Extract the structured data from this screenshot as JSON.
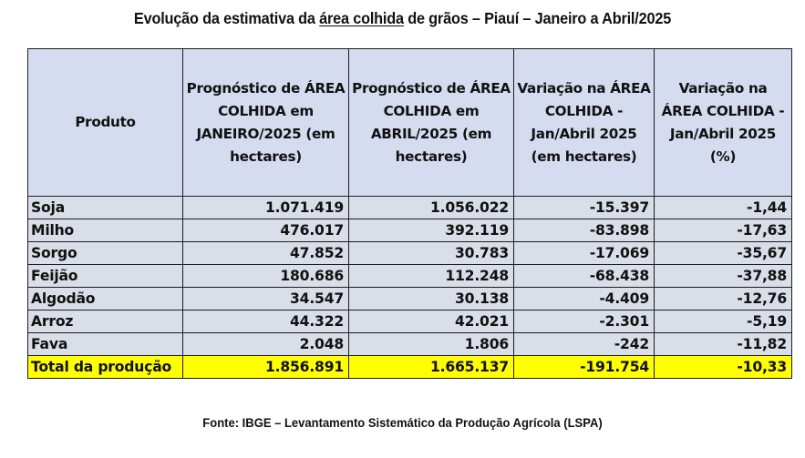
{
  "title": {
    "before": "Evolução da estimativa da ",
    "underlined": "área colhida",
    "after": " de grãos – Piauí – Janeiro a Abril/2025"
  },
  "table": {
    "headers": [
      "Produto",
      "Prognóstico de ÁREA COLHIDA em JANEIRO/2025 (em hectares)",
      "Prognóstico de ÁREA COLHIDA em ABRIL/2025 (em hectares)",
      "Variação na ÁREA COLHIDA - Jan/Abril 2025 (em hectares)",
      "Variação na ÁREA COLHIDA - Jan/Abril 2025 (%)"
    ],
    "rows": [
      {
        "produto": "Soja",
        "jan": "1.071.419",
        "abr": "1.056.022",
        "var_ha": "-15.397",
        "var_pct": "-1,44"
      },
      {
        "produto": "Milho",
        "jan": "476.017",
        "abr": "392.119",
        "var_ha": "-83.898",
        "var_pct": "-17,63"
      },
      {
        "produto": "Sorgo",
        "jan": "47.852",
        "abr": "30.783",
        "var_ha": "-17.069",
        "var_pct": "-35,67"
      },
      {
        "produto": "Feijão",
        "jan": "180.686",
        "abr": "112.248",
        "var_ha": "-68.438",
        "var_pct": "-37,88"
      },
      {
        "produto": "Algodão",
        "jan": "34.547",
        "abr": "30.138",
        "var_ha": "-4.409",
        "var_pct": "-12,76"
      },
      {
        "produto": "Arroz",
        "jan": "44.322",
        "abr": "42.021",
        "var_ha": "-2.301",
        "var_pct": "-5,19"
      },
      {
        "produto": "Fava",
        "jan": "2.048",
        "abr": "1.806",
        "var_ha": "-242",
        "var_pct": "-11,82"
      }
    ],
    "total": {
      "produto": "Total da produção",
      "jan": "1.856.891",
      "abr": "1.665.137",
      "var_ha": "-191.754",
      "var_pct": "-10,33"
    }
  },
  "colors": {
    "header_bg": "#d6dcf0",
    "row_bg": "#d9dee8",
    "total_bg": "#ffff00"
  },
  "source": "Fonte: IBGE – Levantamento Sistemático da Produção Agrícola (LSPA)"
}
